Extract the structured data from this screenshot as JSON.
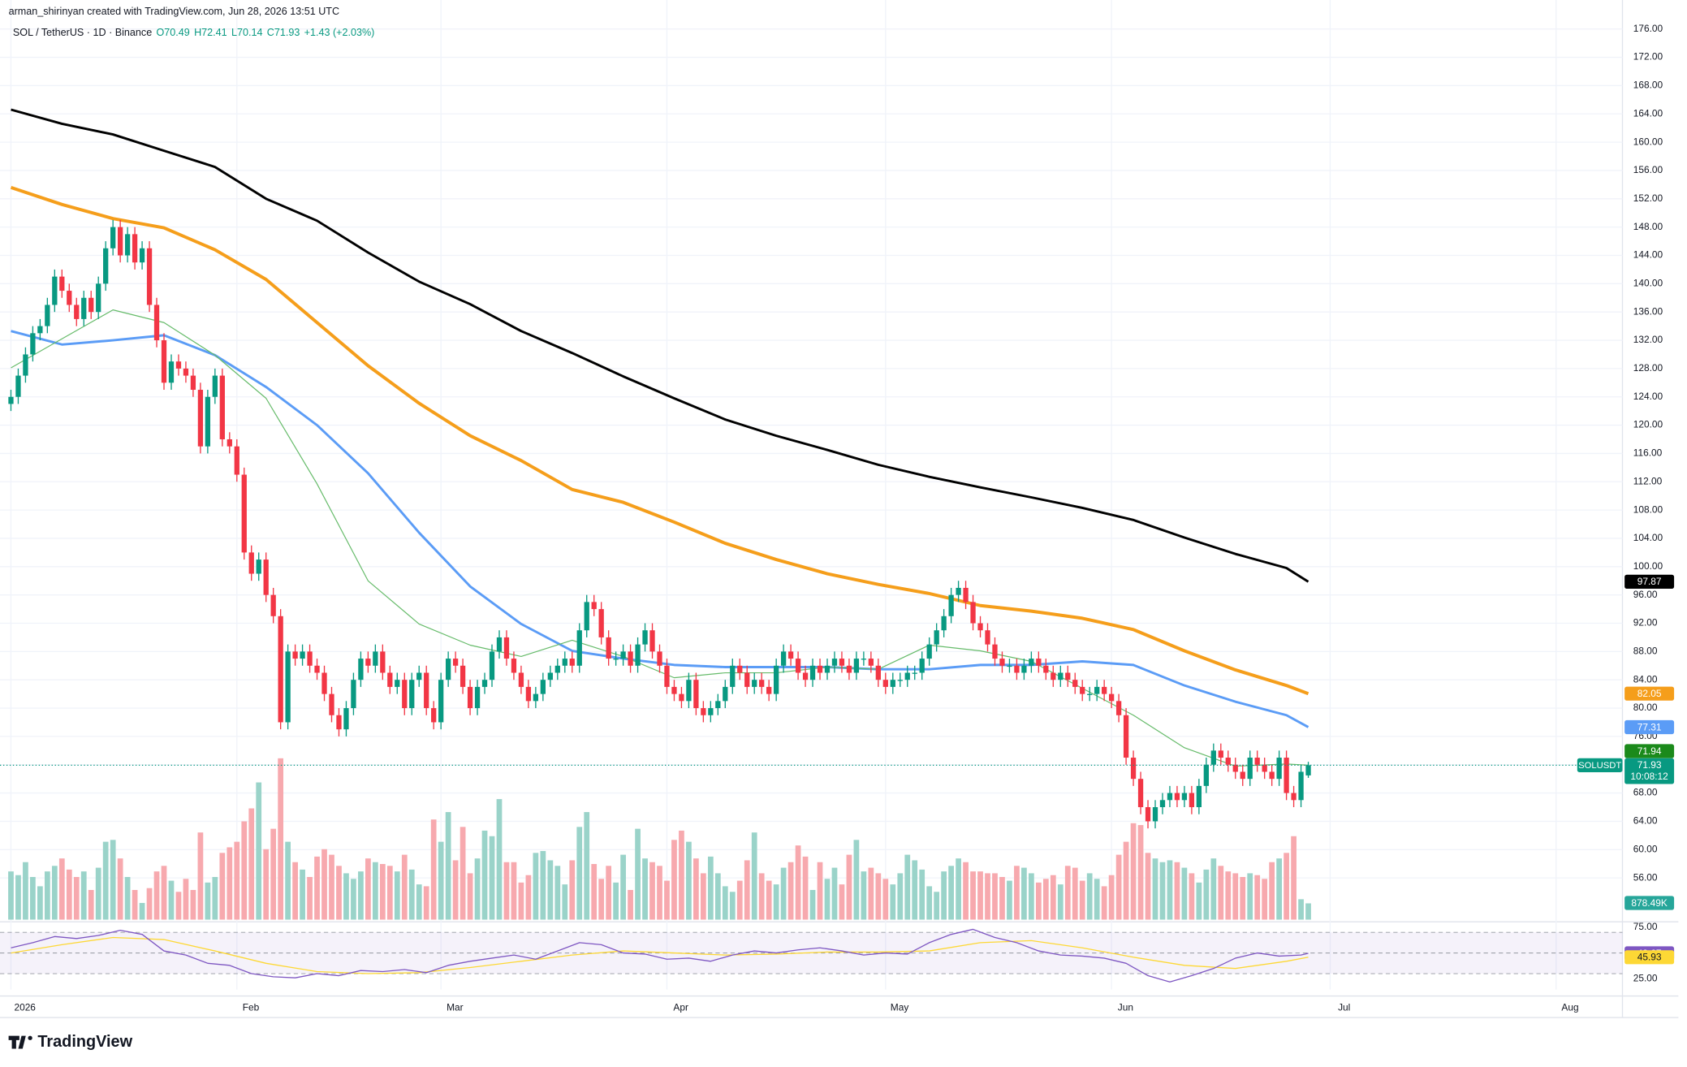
{
  "header": {
    "attribution": "arman_shirinyan created with TradingView.com, Jun 28, 2026 13:51 UTC",
    "symbol": "SOL / TetherUS · 1D · Binance",
    "open": "O70.49",
    "high": "H72.41",
    "low": "L70.14",
    "close": "C71.93",
    "change": "+1.43 (+2.03%)"
  },
  "chart_data": {
    "type": "candlestick",
    "ticker": "SOLUSDT",
    "countdown": "10:08:12",
    "grid": true,
    "colors": {
      "up": "#089981",
      "down": "#f23645",
      "volume_up": "#9ad3c9",
      "volume_down": "#f7a9ae"
    },
    "xlim": [
      -1.5,
      221.1
    ],
    "xticks": [
      {
        "value": 0,
        "label": "2026"
      },
      {
        "value": 31,
        "label": "Feb"
      },
      {
        "value": 59,
        "label": "Mar"
      },
      {
        "value": 90,
        "label": "Apr"
      },
      {
        "value": 120,
        "label": "May"
      },
      {
        "value": 151,
        "label": "Jun"
      },
      {
        "value": 181,
        "label": "Jul"
      },
      {
        "value": 212,
        "label": "Aug"
      }
    ],
    "ylim": [
      50.1,
      180.1
    ],
    "yticks": [
      {
        "value": 176,
        "label": "176.00"
      },
      {
        "value": 172,
        "label": "172.00"
      },
      {
        "value": 168,
        "label": "168.00"
      },
      {
        "value": 164,
        "label": "164.00"
      },
      {
        "value": 160,
        "label": "160.00"
      },
      {
        "value": 156,
        "label": "156.00"
      },
      {
        "value": 152,
        "label": "152.00"
      },
      {
        "value": 148,
        "label": "148.00"
      },
      {
        "value": 144,
        "label": "144.00"
      },
      {
        "value": 140,
        "label": "140.00"
      },
      {
        "value": 136,
        "label": "136.00"
      },
      {
        "value": 132,
        "label": "132.00"
      },
      {
        "value": 128,
        "label": "128.00"
      },
      {
        "value": 124,
        "label": "124.00"
      },
      {
        "value": 120,
        "label": "120.00"
      },
      {
        "value": 116,
        "label": "116.00"
      },
      {
        "value": 112,
        "label": "112.00"
      },
      {
        "value": 108,
        "label": "108.00"
      },
      {
        "value": 104,
        "label": "104.00"
      },
      {
        "value": 100,
        "label": "100.00"
      },
      {
        "value": 96,
        "label": "96.00"
      },
      {
        "value": 92,
        "label": "92.00"
      },
      {
        "value": 88,
        "label": "88.00"
      },
      {
        "value": 84,
        "label": "84.00"
      },
      {
        "value": 80,
        "label": "80.00"
      },
      {
        "value": 76,
        "label": "76.00"
      },
      {
        "value": 72,
        "label": "72.00"
      },
      {
        "value": 68,
        "label": "68.00"
      },
      {
        "value": 64,
        "label": "64.00"
      },
      {
        "value": 60,
        "label": "60.00"
      },
      {
        "value": 56,
        "label": "56.00"
      }
    ],
    "open": [
      123,
      124,
      127,
      130,
      133,
      134,
      137,
      141,
      139,
      137,
      135,
      138,
      136,
      140,
      145,
      148,
      144,
      147,
      143,
      145,
      137,
      132,
      126,
      129,
      128,
      127,
      125,
      117,
      124,
      127,
      118,
      117,
      113,
      102,
      99,
      101,
      96,
      93,
      78,
      88,
      87,
      88,
      86,
      85,
      82,
      79,
      77,
      80,
      84,
      87,
      86,
      88,
      85,
      83,
      84,
      80,
      84,
      85,
      80,
      78,
      84,
      87,
      86,
      83,
      80,
      83,
      84,
      88,
      90,
      87,
      85,
      83,
      81,
      82,
      84,
      85,
      86,
      87,
      86,
      91,
      95,
      94,
      90,
      87,
      87,
      88,
      86,
      89,
      91,
      88,
      86,
      83,
      82,
      81,
      84,
      80,
      79,
      80,
      81,
      83,
      86,
      85,
      83,
      84,
      83,
      82,
      86,
      88,
      87,
      85,
      84,
      86,
      85,
      86,
      87,
      86,
      85,
      87,
      87,
      86,
      84,
      83,
      84,
      84,
      85,
      85,
      87,
      89,
      91,
      93,
      96,
      97,
      95,
      92,
      91,
      89,
      87,
      86,
      86,
      85,
      86,
      87,
      86,
      85,
      84,
      85,
      84,
      83,
      82,
      82,
      83,
      82,
      81,
      79,
      73,
      70,
      66,
      64,
      66,
      67,
      68,
      67,
      68,
      66,
      69,
      72,
      74,
      73,
      72,
      71,
      70,
      73,
      72,
      71,
      70,
      73,
      68,
      67,
      70.49
    ],
    "high": [
      125,
      128,
      131,
      134,
      135,
      138,
      142,
      142,
      140,
      138,
      139,
      139,
      141,
      146,
      149,
      149,
      148,
      148,
      146,
      146,
      138,
      133,
      130,
      130,
      129,
      128,
      126,
      125,
      128,
      128,
      119,
      118,
      114,
      103,
      102,
      102,
      97,
      94,
      89,
      89,
      89,
      89,
      87,
      86,
      83,
      80,
      81,
      85,
      88,
      88,
      89,
      89,
      86,
      85,
      85,
      85,
      86,
      86,
      81,
      85,
      88,
      88,
      87,
      84,
      84,
      85,
      89,
      91,
      91,
      88,
      86,
      84,
      83,
      85,
      86,
      87,
      88,
      88,
      92,
      96,
      96,
      95,
      91,
      88,
      89,
      89,
      90,
      92,
      92,
      89,
      87,
      84,
      83,
      85,
      85,
      81,
      81,
      82,
      84,
      87,
      87,
      86,
      85,
      85,
      84,
      87,
      89,
      89,
      88,
      86,
      87,
      87,
      87,
      88,
      88,
      87,
      88,
      88,
      88,
      87,
      85,
      85,
      85,
      86,
      86,
      88,
      90,
      92,
      94,
      97,
      98,
      98,
      96,
      93,
      92,
      90,
      88,
      87,
      87,
      87,
      88,
      88,
      87,
      86,
      86,
      86,
      85,
      84,
      83,
      84,
      84,
      83,
      82,
      80,
      74,
      71,
      67,
      67,
      68,
      69,
      69,
      69,
      69,
      70,
      73,
      75,
      75,
      74,
      73,
      72,
      74,
      74,
      73,
      72,
      74,
      74,
      69,
      72,
      72.41
    ],
    "low": [
      122,
      123,
      126,
      129,
      132,
      133,
      136,
      138,
      136,
      134,
      134,
      135,
      135,
      139,
      144,
      143,
      143,
      142,
      142,
      136,
      131,
      125,
      125,
      127,
      126,
      124,
      116,
      116,
      123,
      117,
      116,
      112,
      101,
      98,
      98,
      95,
      92,
      77,
      77,
      86,
      86,
      85,
      84,
      81,
      78,
      76,
      76,
      79,
      83,
      85,
      85,
      84,
      82,
      82,
      79,
      79,
      83,
      79,
      77,
      77,
      83,
      85,
      82,
      79,
      79,
      82,
      83,
      87,
      86,
      84,
      82,
      80,
      80,
      81,
      83,
      84,
      85,
      85,
      85,
      90,
      93,
      89,
      86,
      86,
      86,
      85,
      85,
      88,
      87,
      85,
      82,
      81,
      80,
      80,
      79,
      78,
      78,
      79,
      80,
      82,
      84,
      82,
      82,
      82,
      81,
      81,
      85,
      86,
      84,
      83,
      83,
      84,
      84,
      85,
      85,
      84,
      84,
      86,
      85,
      83,
      82,
      82,
      83,
      83,
      84,
      84,
      86,
      88,
      90,
      92,
      95,
      94,
      91,
      90,
      88,
      86,
      85,
      85,
      84,
      84,
      85,
      85,
      84,
      83,
      83,
      83,
      82,
      81,
      81,
      81,
      81,
      80,
      78,
      72,
      69,
      65,
      63,
      63,
      65,
      66,
      66,
      66,
      65,
      65,
      68,
      71,
      72,
      71,
      70,
      69,
      69,
      71,
      70,
      69,
      69,
      67,
      66,
      66,
      70.14
    ],
    "close": [
      124,
      127,
      130,
      133,
      134,
      137,
      141,
      139,
      137,
      135,
      138,
      136,
      140,
      145,
      148,
      144,
      147,
      143,
      145,
      137,
      132,
      126,
      129,
      128,
      127,
      125,
      117,
      124,
      127,
      118,
      117,
      113,
      102,
      99,
      101,
      96,
      93,
      78,
      88,
      87,
      88,
      86,
      85,
      82,
      79,
      77,
      80,
      84,
      87,
      86,
      88,
      85,
      83,
      84,
      80,
      84,
      85,
      80,
      78,
      84,
      87,
      86,
      83,
      80,
      83,
      84,
      88,
      90,
      87,
      85,
      83,
      81,
      82,
      84,
      85,
      86,
      87,
      86,
      91,
      95,
      94,
      90,
      87,
      87,
      88,
      86,
      89,
      91,
      88,
      86,
      83,
      82,
      81,
      84,
      80,
      79,
      80,
      81,
      83,
      86,
      85,
      83,
      84,
      83,
      82,
      86,
      88,
      87,
      85,
      84,
      86,
      85,
      86,
      87,
      86,
      85,
      87,
      87,
      86,
      84,
      83,
      84,
      84,
      85,
      85,
      87,
      89,
      91,
      93,
      96,
      97,
      95,
      92,
      91,
      89,
      87,
      86,
      86,
      85,
      86,
      87,
      86,
      85,
      84,
      85,
      84,
      83,
      82,
      82,
      83,
      82,
      81,
      79,
      73,
      70,
      66,
      64,
      66,
      67,
      68,
      67,
      68,
      66,
      69,
      72,
      74,
      73,
      72,
      71,
      70,
      73,
      72,
      71,
      70,
      73,
      68,
      67,
      71,
      71.93
    ],
    "volume": {
      "values": [
        2600,
        2400,
        3100,
        2300,
        1800,
        2600,
        2900,
        3300,
        2700,
        2300,
        2600,
        1600,
        2800,
        4200,
        4300,
        3300,
        2300,
        1600,
        900,
        1700,
        2600,
        2900,
        2100,
        1500,
        2200,
        1600,
        4700,
        2000,
        2300,
        3600,
        3900,
        4200,
        5300,
        6000,
        7400,
        3800,
        4900,
        8700,
        4200,
        3100,
        2700,
        2300,
        3400,
        3800,
        3500,
        2900,
        2500,
        2200,
        2600,
        3300,
        3100,
        3000,
        2900,
        2600,
        3500,
        2700,
        1900,
        1800,
        5400,
        4200,
        5800,
        3200,
        5000,
        2500,
        3300,
        4800,
        4500,
        6500,
        3100,
        3100,
        2000,
        2400,
        3600,
        3700,
        3200,
        2900,
        1900,
        3200,
        5000,
        5800,
        3000,
        2200,
        2900,
        2000,
        3500,
        1600,
        4900,
        3300,
        3100,
        2900,
        2100,
        4300,
        4800,
        4200,
        3300,
        2500,
        3400,
        2500,
        1800,
        1500,
        2100,
        3200,
        4700,
        2500,
        2100,
        1900,
        2800,
        3100,
        4000,
        3400,
        1600,
        3100,
        2200,
        2800,
        1900,
        3500,
        4300,
        2600,
        2800,
        2500,
        2200,
        1900,
        2500,
        3500,
        3200,
        2700,
        1800,
        1500,
        2600,
        2900,
        3300,
        3100,
        2600,
        2600,
        2500,
        2500,
        2300,
        2100,
        2900,
        2800,
        2500,
        2000,
        2200,
        2400,
        1900,
        2900,
        2800,
        2100,
        2500,
        2200,
        1800,
        2400,
        3500,
        4200,
        5200,
        5100,
        3600,
        3300,
        3100,
        3200,
        3100,
        2800,
        2500,
        2000,
        2700,
        3300,
        2900,
        2600,
        2500,
        2300,
        2500,
        2400,
        2200,
        3100,
        3300,
        3600,
        4500,
        1100,
        878.49
      ],
      "last_value_label": "878.49K"
    },
    "moving_averages": [
      {
        "color": "#000000",
        "width": 2.2,
        "x": [
          0,
          7,
          14,
          21,
          28,
          35,
          42,
          49,
          56,
          63,
          70,
          77,
          84,
          91,
          98,
          105,
          112,
          119,
          126,
          133,
          140,
          147,
          154,
          161,
          168,
          175,
          178
        ],
        "values": [
          164.6,
          162.6,
          161.1,
          158.8,
          156.5,
          152,
          148.9,
          144.4,
          140.3,
          137.1,
          133.3,
          130.2,
          126.9,
          123.8,
          120.8,
          118.5,
          116.5,
          114.4,
          112.7,
          111.2,
          109.8,
          108.3,
          106.6,
          104.1,
          101.8,
          99.8,
          97.87
        ]
      },
      {
        "color": "#f59e1b",
        "width": 3,
        "x": [
          0,
          7,
          14,
          21,
          28,
          35,
          42,
          49,
          56,
          63,
          70,
          77,
          84,
          91,
          98,
          105,
          112,
          119,
          126,
          133,
          140,
          147,
          154,
          161,
          168,
          175,
          178
        ],
        "values": [
          153.6,
          151.2,
          149.2,
          147.9,
          144.8,
          140.6,
          134.5,
          128.4,
          123.1,
          118.5,
          115,
          110.9,
          109.1,
          106.3,
          103.3,
          101,
          99,
          97.5,
          96.2,
          94.5,
          93.7,
          92.7,
          91.1,
          88.1,
          85.4,
          83.2,
          82.05
        ]
      },
      {
        "color": "#5b9cf6",
        "width": 2.2,
        "x": [
          0,
          7,
          14,
          21,
          28,
          35,
          42,
          49,
          56,
          63,
          70,
          77,
          84,
          91,
          98,
          105,
          112,
          119,
          126,
          133,
          140,
          147,
          154,
          161,
          168,
          175,
          178
        ],
        "values": [
          133.3,
          131.4,
          132,
          132.7,
          129.9,
          125.4,
          120,
          113.2,
          104.8,
          97.2,
          91.9,
          88.1,
          87,
          86.1,
          85.8,
          85.8,
          85.8,
          85.5,
          85.5,
          86.1,
          86.1,
          86.6,
          86.1,
          83.2,
          80.9,
          79,
          77.31
        ]
      },
      {
        "color": "#66bb6a",
        "width": 0.9,
        "badge": "#1b8a1b",
        "x": [
          0,
          7,
          14,
          21,
          28,
          35,
          42,
          49,
          56,
          63,
          70,
          77,
          84,
          91,
          98,
          105,
          112,
          119,
          126,
          133,
          140,
          147,
          154,
          161,
          168,
          175,
          178
        ],
        "values": [
          128.1,
          132.2,
          136.3,
          134.5,
          129.9,
          123.8,
          111.7,
          98,
          91.9,
          88.9,
          87.3,
          89.6,
          87.3,
          84.3,
          85,
          85,
          85.8,
          85.5,
          88.9,
          88.1,
          86.6,
          82.8,
          79,
          74.4,
          71.8,
          72.1,
          71.94
        ]
      }
    ],
    "rsi": {
      "color": "#7e57c2",
      "ylim": [
        14.6,
        79.2
      ],
      "yticks": [
        {
          "value": 75,
          "label": "75.00"
        },
        {
          "value": 25,
          "label": "25.00"
        }
      ],
      "levels": [
        70,
        50,
        30
      ],
      "x": [
        0,
        3,
        6,
        9,
        12,
        15,
        18,
        21,
        24,
        27,
        30,
        33,
        36,
        39,
        42,
        45,
        48,
        51,
        54,
        57,
        60,
        63,
        66,
        69,
        72,
        75,
        78,
        81,
        84,
        87,
        90,
        93,
        96,
        99,
        102,
        105,
        108,
        111,
        114,
        117,
        120,
        123,
        126,
        129,
        132,
        135,
        138,
        141,
        144,
        147,
        150,
        153,
        156,
        159,
        162,
        165,
        168,
        171,
        174,
        177,
        178
      ],
      "values": [
        55,
        60,
        66,
        64,
        67,
        72,
        68,
        52,
        48,
        40,
        38,
        30,
        27,
        26,
        30,
        28,
        33,
        32,
        34,
        31,
        38,
        42,
        45,
        48,
        44,
        52,
        60,
        58,
        50,
        49,
        44,
        45,
        42,
        48,
        52,
        50,
        53,
        55,
        52,
        48,
        50,
        49,
        60,
        68,
        73,
        65,
        60,
        52,
        48,
        47,
        45,
        40,
        28,
        22,
        28,
        35,
        45,
        50,
        47,
        48,
        49.67
      ],
      "ma": {
        "color": "#fdd835",
        "x": [
          0,
          7,
          14,
          21,
          28,
          35,
          42,
          49,
          56,
          63,
          70,
          77,
          84,
          91,
          98,
          105,
          112,
          119,
          126,
          133,
          140,
          147,
          154,
          161,
          168,
          175,
          178
        ],
        "values": [
          50,
          58,
          65,
          63,
          52,
          40,
          32,
          30,
          31,
          36,
          42,
          48,
          52,
          50,
          48,
          49,
          51,
          51,
          52,
          60,
          62,
          55,
          46,
          38,
          35,
          42,
          45.93
        ]
      }
    }
  },
  "footer": {
    "logo": "TradingView"
  }
}
